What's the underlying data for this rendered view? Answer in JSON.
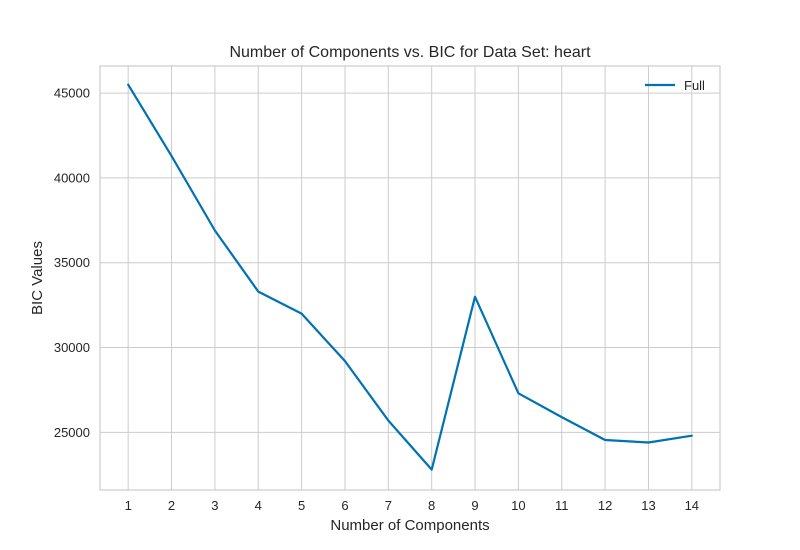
{
  "chart_data": {
    "type": "line",
    "title": "Number of Components vs. BIC for Data Set: heart",
    "xlabel": "Number of Components",
    "ylabel": "BIC Values",
    "x": [
      1,
      2,
      3,
      4,
      5,
      6,
      7,
      8,
      9,
      10,
      11,
      12,
      13,
      14
    ],
    "x_ticks": [
      "1",
      "2",
      "3",
      "4",
      "5",
      "6",
      "7",
      "8",
      "9",
      "10",
      "11",
      "12",
      "13",
      "14"
    ],
    "y_ticks": [
      "25000",
      "30000",
      "35000",
      "40000",
      "45000"
    ],
    "y_tick_values": [
      25000,
      30000,
      35000,
      40000,
      45000
    ],
    "xlim": [
      0.35,
      14.65
    ],
    "ylim": [
      21600,
      46600
    ],
    "grid": true,
    "legend_position": "top-right",
    "series": [
      {
        "name": "Full",
        "color": "#0072b2",
        "values": [
          45500,
          41300,
          36900,
          33300,
          32000,
          29200,
          25700,
          22800,
          33000,
          27300,
          25900,
          24550,
          24400,
          24800
        ]
      }
    ]
  }
}
